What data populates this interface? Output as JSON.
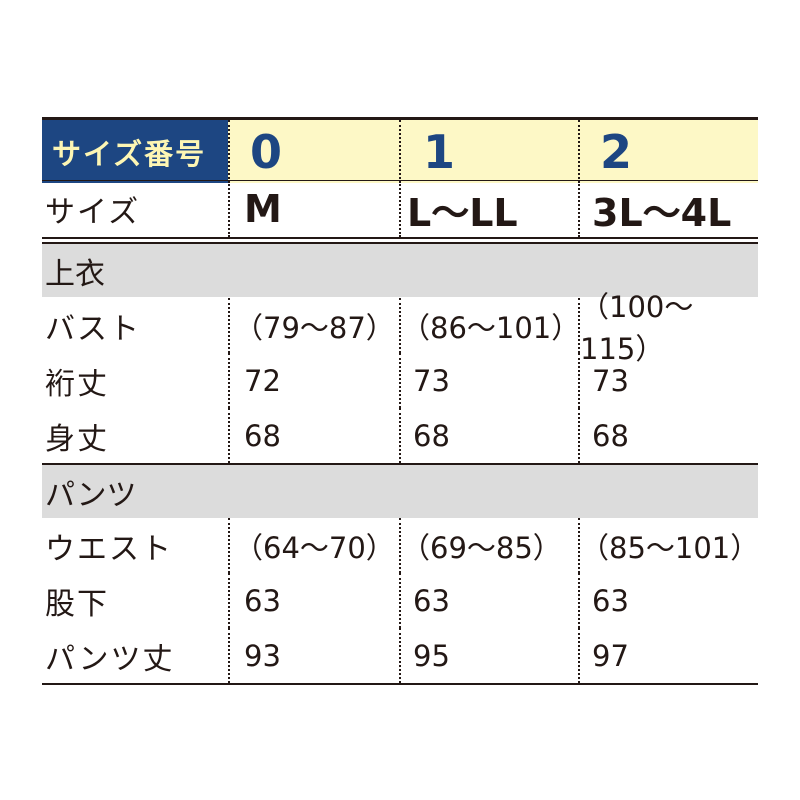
{
  "header": {
    "label": "サイズ番号",
    "cols": [
      "0",
      "1",
      "2"
    ]
  },
  "size_row": {
    "label": "サイズ",
    "cols": [
      "M",
      "L～LL",
      "3L～4L"
    ]
  },
  "sections": [
    {
      "title": "上衣",
      "rows": [
        {
          "label": "バスト",
          "values": [
            "（79～87）",
            "（86～101）",
            "（100～115）"
          ]
        },
        {
          "label": "裄丈",
          "values": [
            "72",
            "73",
            "73"
          ]
        },
        {
          "label": "身丈",
          "values": [
            "68",
            "68",
            "68"
          ]
        }
      ]
    },
    {
      "title": "パンツ",
      "rows": [
        {
          "label": "ウエスト",
          "values": [
            "（64～70）",
            "（69～85）",
            "（85～101）"
          ]
        },
        {
          "label": "股下",
          "values": [
            "63",
            "63",
            "63"
          ]
        },
        {
          "label": "パンツ丈",
          "values": [
            "93",
            "95",
            "97"
          ]
        }
      ]
    }
  ],
  "colors": {
    "navy": "#1d4682",
    "yellow": "#fdf8c6",
    "gray": "#dcdcdc"
  }
}
